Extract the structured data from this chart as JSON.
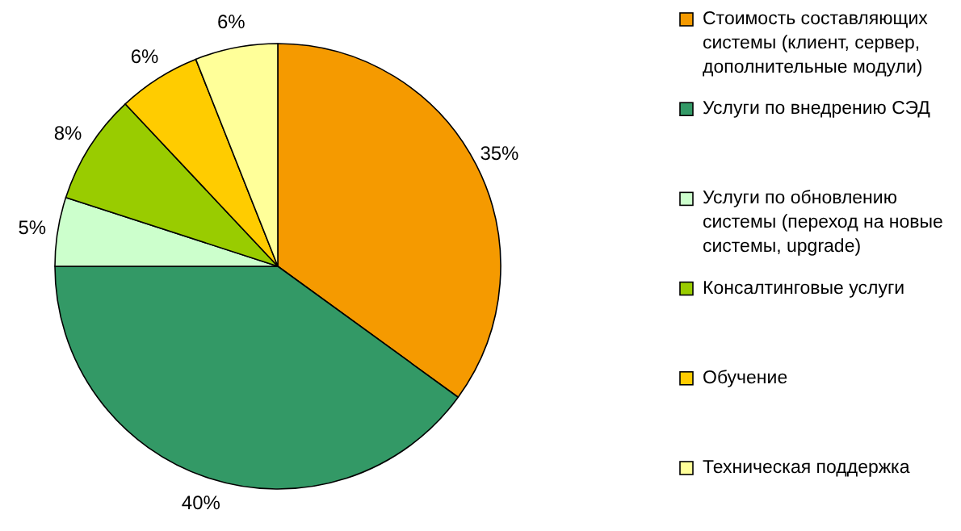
{
  "chart_data": {
    "type": "pie",
    "categories": [
      "Стоимость составляющих системы (клиент, сервер, дополнительные модули)",
      "Услуги по внедрению СЭД",
      "Услуги по обновлению системы (переход на новые системы, upgrade)",
      "Консалтинговые услуги",
      "Обучение",
      "Техническая поддержка"
    ],
    "values": [
      35,
      40,
      5,
      8,
      6,
      6
    ],
    "value_labels": [
      "35%",
      "40%",
      "5%",
      "8%",
      "6%",
      "6%"
    ],
    "colors": [
      "#f59a00",
      "#339966",
      "#ccffcc",
      "#99cc00",
      "#ffcc00",
      "#ffff99"
    ],
    "legend": "right"
  }
}
